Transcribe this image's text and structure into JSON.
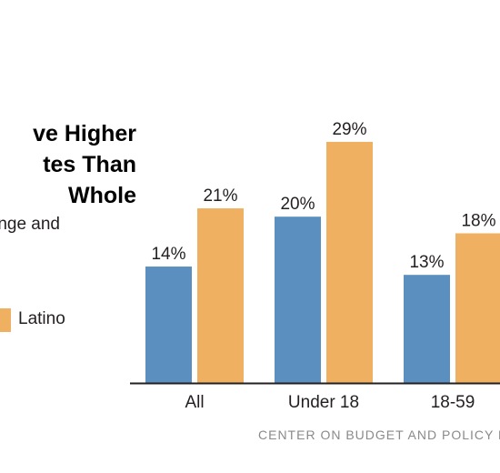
{
  "title": {
    "lines": [
      "ve Higher",
      "tes Than",
      "Whole"
    ]
  },
  "subtitle": "nge and",
  "legend": {
    "items": [
      {
        "label": "Latino",
        "color": "#f0b062"
      }
    ]
  },
  "source": "CENTER ON BUDGET AND POLICY P",
  "colors": {
    "series_a": "#5a8fc0",
    "series_b": "#f0b062",
    "axis": "#231f20",
    "source_text": "#8a8a8a"
  },
  "chart_data": {
    "type": "bar",
    "title": "",
    "xlabel": "",
    "ylabel": "",
    "categories": [
      "All",
      "Under 18",
      "18-59"
    ],
    "series": [
      {
        "name": "",
        "values": [
          14,
          20,
          13
        ],
        "labels": [
          "14%",
          "20%",
          "13%"
        ],
        "color": "#5a8fc0"
      },
      {
        "name": "Latino",
        "values": [
          21,
          29,
          18
        ],
        "labels": [
          "21%",
          "29%",
          "18%"
        ],
        "color": "#f0b062"
      }
    ],
    "ylim": [
      0,
      35
    ],
    "grid": false,
    "legend_position": "left"
  }
}
